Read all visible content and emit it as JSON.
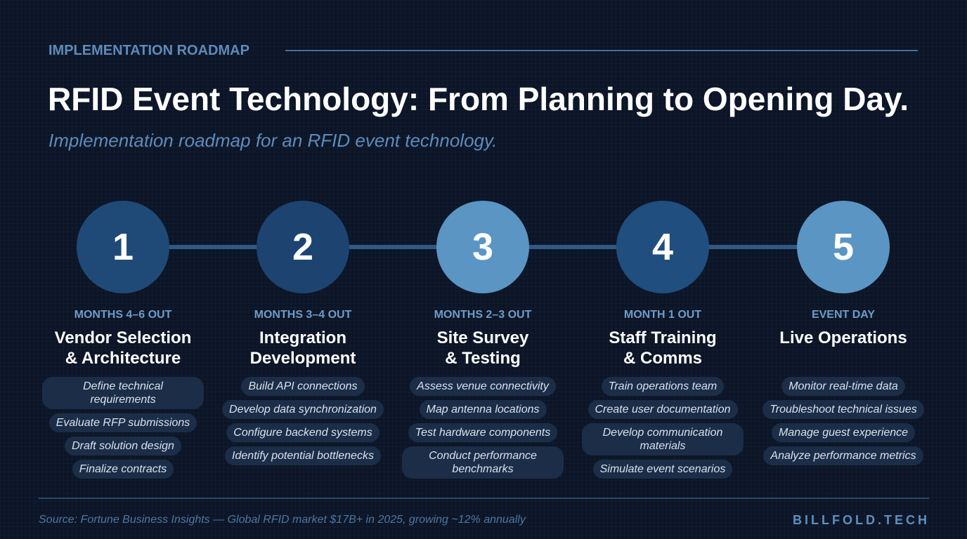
{
  "header": {
    "eyebrow": "IMPLEMENTATION ROADMAP",
    "title": "RFID Event Technology: From Planning to Opening Day.",
    "subtitle": "Implementation roadmap for an RFID event technology."
  },
  "steps": [
    {
      "number": "1",
      "timeframe": "MONTHS 4–6 OUT",
      "title_lines": [
        "Vendor Selection",
        "& Architecture"
      ],
      "tasks": [
        "Define technical requirements",
        "Evaluate RFP submissions",
        "Draft solution design",
        "Finalize contracts"
      ]
    },
    {
      "number": "2",
      "timeframe": "MONTHS 3–4 OUT",
      "title_lines": [
        "Integration",
        "Development"
      ],
      "tasks": [
        "Build API connections",
        "Develop data synchronization",
        "Configure backend systems",
        "Identify potential bottlenecks"
      ]
    },
    {
      "number": "3",
      "timeframe": "MONTHS 2–3 OUT",
      "title_lines": [
        "Site Survey",
        "& Testing"
      ],
      "tasks": [
        "Assess venue connectivity",
        "Map antenna locations",
        "Test hardware components",
        "Conduct performance benchmarks"
      ]
    },
    {
      "number": "4",
      "timeframe": "MONTH 1 OUT",
      "title_lines": [
        "Staff Training",
        "& Comms"
      ],
      "tasks": [
        "Train operations team",
        "Create user documentation",
        "Develop communication materials",
        "Simulate event scenarios"
      ]
    },
    {
      "number": "5",
      "timeframe": "EVENT DAY",
      "title_lines": [
        "Live Operations"
      ],
      "tasks": [
        "Monitor real-time data",
        "Troubleshoot technical issues",
        "Manage guest experience",
        "Analyze performance metrics"
      ]
    }
  ],
  "footer": {
    "source": "Source: Fortune Business Insights — Global RFID market $17B+ in 2025, growing ~12% annually",
    "brand": "BILLFOLD.TECH"
  }
}
